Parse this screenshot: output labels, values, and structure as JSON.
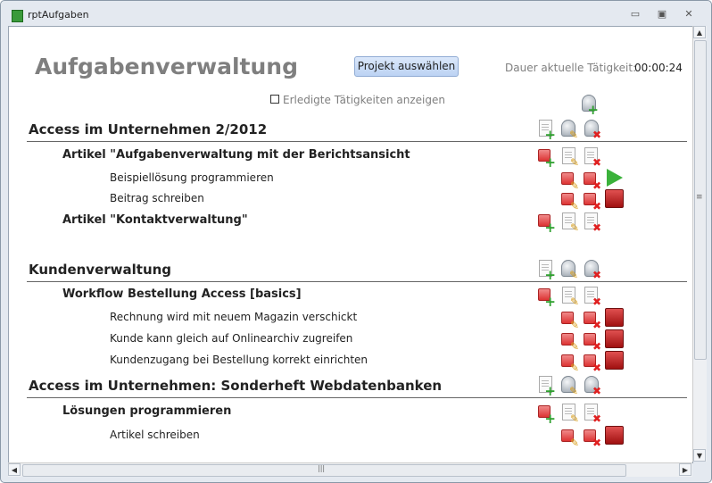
{
  "window": {
    "title": "rptAufgaben",
    "minimize": "▭",
    "restore": "▣",
    "close": "✕"
  },
  "header": {
    "title": "Aufgabenverwaltung",
    "select_project_button": "Projekt auswählen",
    "duration_label": "Dauer aktuelle Tätigkeit:",
    "duration_value": "00:00:24",
    "show_done_label": "Erledigte Tätigkeiten anzeigen",
    "show_done_checked": false
  },
  "colors": {
    "heading": "#7f7f7f",
    "add": "#2ea02e",
    "delete": "#e02020",
    "start": "#3bb23b",
    "stop": "#c02020"
  },
  "projects": [
    {
      "name": "Access im Unternehmen 2/2012",
      "articles": [
        {
          "name": "Artikel \"Aufgabenverwaltung mit der Berichtsansicht",
          "tasks": [
            {
              "name": "Beispiellösung programmieren",
              "state": "start"
            },
            {
              "name": "Beitrag schreiben",
              "state": "stop"
            }
          ]
        },
        {
          "name": "Artikel \"Kontaktverwaltung\"",
          "tasks": []
        }
      ]
    },
    {
      "name": "Kundenverwaltung",
      "articles": [
        {
          "name": "Workflow Bestellung Access [basics]",
          "tasks": [
            {
              "name": "Rechnung wird mit neuem Magazin verschickt",
              "state": "stop"
            },
            {
              "name": "Kunde kann gleich auf Onlinearchiv zugreifen",
              "state": "stop"
            },
            {
              "name": "Kundenzugang bei Bestellung korrekt einrichten",
              "state": "stop"
            }
          ]
        }
      ]
    },
    {
      "name": "Access im Unternehmen: Sonderheft Webdatenbanken",
      "articles": [
        {
          "name": "Lösungen programmieren",
          "tasks": [
            {
              "name": "Artikel schreiben",
              "state": "stop"
            }
          ]
        }
      ]
    }
  ],
  "scrollbars": {
    "up": "▲",
    "down": "▼",
    "left": "◀",
    "right": "▶",
    "grip_v": "≡",
    "grip_h": "|||"
  }
}
